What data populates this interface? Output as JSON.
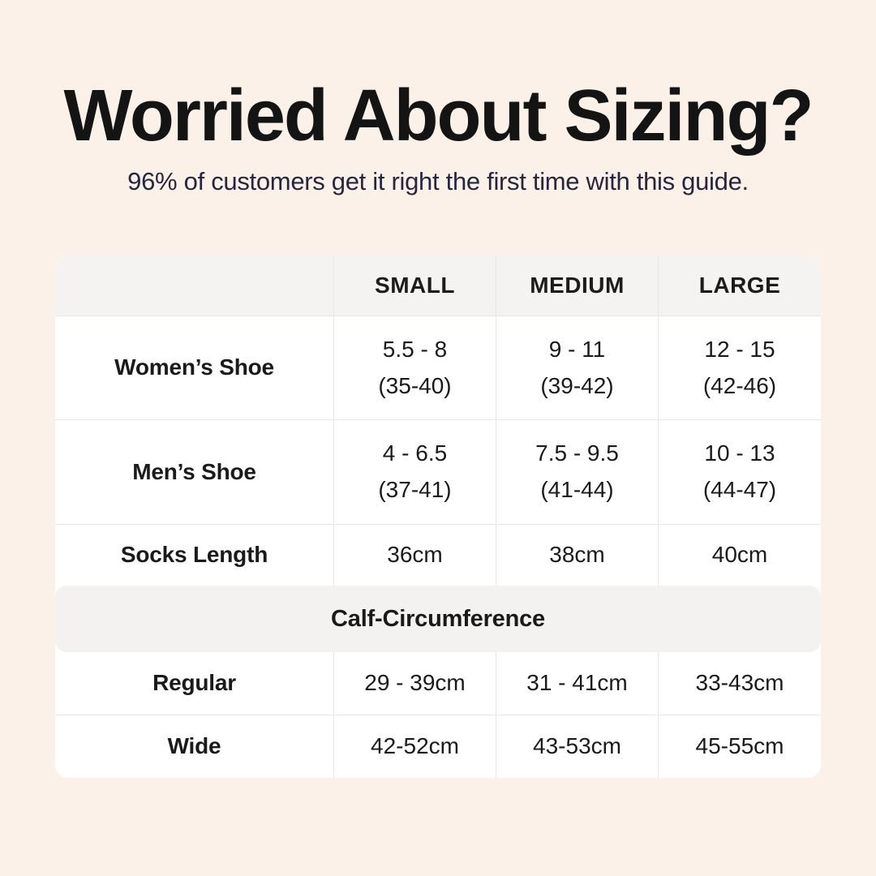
{
  "page": {
    "title": "Worried About Sizing?",
    "subtitle": "96% of customers get it right the first time with this guide."
  },
  "colors": {
    "background": "#FCF1E8",
    "card": "#FFFFFF",
    "header_band": "#F4F3F1",
    "section_band": "#F3F2F0",
    "divider": "#E9E7E4",
    "title_text": "#141414",
    "subtitle_text": "#26263F",
    "table_text": "#1A1A1A"
  },
  "table": {
    "header": [
      "",
      "SMALL",
      "MEDIUM",
      "LARGE"
    ],
    "shoe_rows": [
      {
        "label": "Women’s Shoe",
        "small": [
          "5.5 - 8",
          "(35-40)"
        ],
        "medium": [
          "9 - 11",
          "(39-42)"
        ],
        "large": [
          "12 - 15",
          "(42-46)"
        ]
      },
      {
        "label": "Men’s Shoe",
        "small": [
          "4 - 6.5",
          "(37-41)"
        ],
        "medium": [
          "7.5 - 9.5",
          "(41-44)"
        ],
        "large": [
          "10 - 13",
          "(44-47)"
        ]
      }
    ],
    "socks_row": {
      "label": "Socks Length",
      "small": "36cm",
      "medium": "38cm",
      "large": "40cm"
    },
    "calf_section_title": "Calf-Circumference",
    "calf_rows": [
      {
        "label": "Regular",
        "small": "29 - 39cm",
        "medium": "31 - 41cm",
        "large": "33-43cm"
      },
      {
        "label": "Wide",
        "small": "42-52cm",
        "medium": "43-53cm",
        "large": "45-55cm"
      }
    ]
  },
  "chart_data": {
    "type": "table",
    "title": "Worried About Sizing?",
    "subtitle": "96% of customers get it right the first time with this guide.",
    "columns": [
      "",
      "SMALL",
      "MEDIUM",
      "LARGE"
    ],
    "rows": [
      [
        "Women’s Shoe",
        "5.5 - 8 (35-40)",
        "9 - 11 (39-42)",
        "12 - 15 (42-46)"
      ],
      [
        "Men’s Shoe",
        "4 - 6.5 (37-41)",
        "7.5 - 9.5 (41-44)",
        "10 - 13 (44-47)"
      ],
      [
        "Socks Length",
        "36cm",
        "38cm",
        "40cm"
      ],
      [
        "Calf-Circumference",
        "",
        "",
        ""
      ],
      [
        "Regular",
        "29 - 39cm",
        "31 - 41cm",
        "33-43cm"
      ],
      [
        "Wide",
        "42-52cm",
        "43-53cm",
        "45-55cm"
      ]
    ]
  }
}
